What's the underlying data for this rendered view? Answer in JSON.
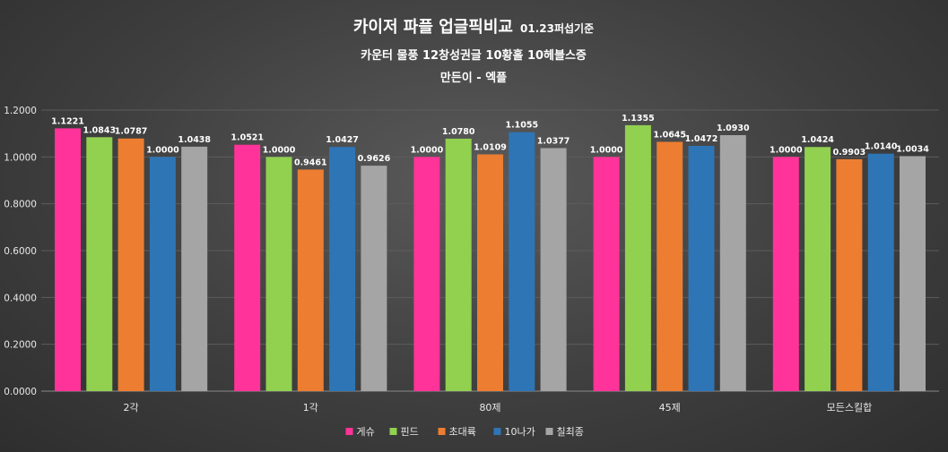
{
  "chart_data": {
    "type": "bar",
    "title": "카이저 파플 업글픽비교",
    "title_note": "01.23퍼섭기준",
    "subtitle": "카운터 물풍 12창성권글 10황홀 10헤블스증",
    "subtitle2": "만든이 - 엑플",
    "categories": [
      "2각",
      "1각",
      "80제",
      "45제",
      "모든스킬합"
    ],
    "series": [
      {
        "name": "게슈",
        "color": "#FF3399",
        "values": [
          1.1221,
          1.0521,
          1.0,
          1.0,
          1.0
        ],
        "labels": [
          "1.1221",
          "1.0521",
          "1.0000",
          "1.0000",
          "1.0000"
        ]
      },
      {
        "name": "핀드",
        "color": "#92D050",
        "values": [
          1.0843,
          1.0,
          1.078,
          1.1355,
          1.0424
        ],
        "labels": [
          "1.0843",
          "1.0000",
          "1.0780",
          "1.1355",
          "1.0424"
        ]
      },
      {
        "name": "초대륙",
        "color": "#ED7D31",
        "values": [
          1.0787,
          0.9461,
          1.0109,
          1.0645,
          0.9903
        ],
        "labels": [
          "1.0787",
          "0.9461",
          "1.0109",
          "1.0645",
          "0.9903"
        ]
      },
      {
        "name": "10나가",
        "color": "#2E75B6",
        "values": [
          1.0,
          1.0427,
          1.1055,
          1.0472,
          1.014
        ],
        "labels": [
          "1.0000",
          "1.0427",
          "1.1055",
          "1.0472",
          "1.0140"
        ]
      },
      {
        "name": "칠최종",
        "color": "#A5A5A5",
        "values": [
          1.0438,
          0.9626,
          1.0377,
          1.093,
          1.0034
        ],
        "labels": [
          "1.0438",
          "0.9626",
          "1.0377",
          "1.0930",
          "1.0034"
        ]
      }
    ],
    "ylim": [
      0,
      1.2
    ],
    "yticks": [
      "0.0000",
      "0.2000",
      "0.4000",
      "0.6000",
      "0.8000",
      "1.0000",
      "1.2000"
    ],
    "grid": true,
    "legend": "bottom"
  }
}
